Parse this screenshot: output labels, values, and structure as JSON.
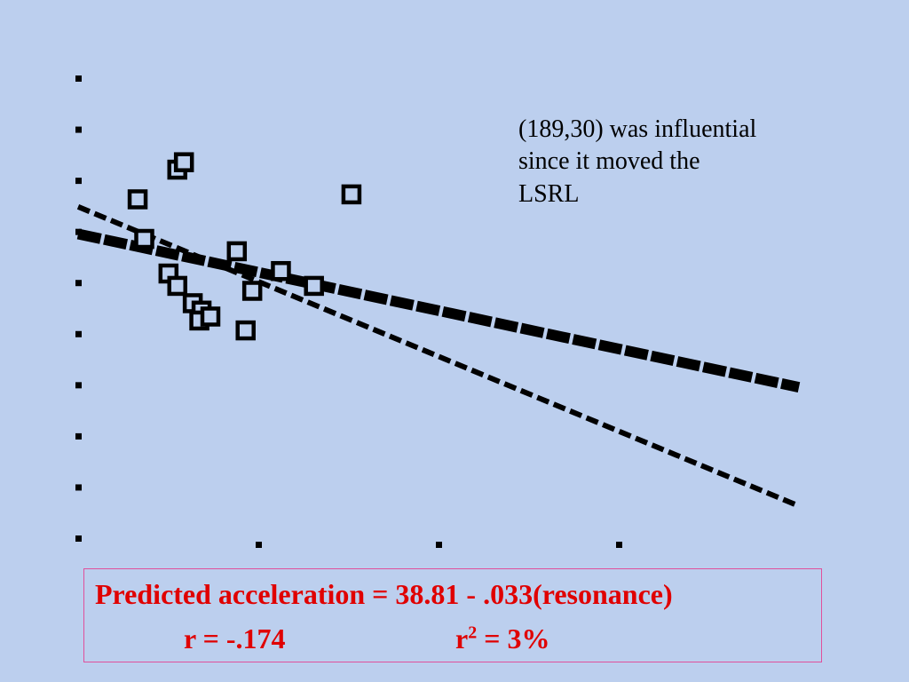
{
  "annotation": {
    "line1": "(189,30) was influential",
    "line2": "since it moved the",
    "line3": "LSRL"
  },
  "equation": {
    "text": "Predicted acceleration = 38.81 - .033(resonance)",
    "r": "r = -.174",
    "r2_prefix": "r",
    "r2_exp": "2",
    "r2_suffix": " = 3%"
  },
  "colors": {
    "background": "#bccfee",
    "ink": "#000000",
    "equation_text": "#e00000",
    "equation_border": "#e0509c"
  },
  "chart_data": {
    "type": "scatter",
    "x_ticks": 4,
    "y_ticks": 10,
    "xlim": [
      0,
      3.27
    ],
    "ylim": [
      0,
      9.3
    ],
    "points": [
      {
        "x": 0.27,
        "y": 6.85
      },
      {
        "x": 0.3,
        "y": 6.05
      },
      {
        "x": 0.41,
        "y": 5.35
      },
      {
        "x": 0.45,
        "y": 5.1
      },
      {
        "x": 0.52,
        "y": 4.75
      },
      {
        "x": 0.56,
        "y": 4.6
      },
      {
        "x": 0.55,
        "y": 4.4
      },
      {
        "x": 0.6,
        "y": 4.48
      },
      {
        "x": 0.72,
        "y": 5.8
      },
      {
        "x": 0.76,
        "y": 4.2
      },
      {
        "x": 0.79,
        "y": 5.0
      },
      {
        "x": 0.92,
        "y": 5.4
      },
      {
        "x": 1.07,
        "y": 5.1
      },
      {
        "x": 1.24,
        "y": 6.95
      },
      {
        "x": 0.45,
        "y": 7.45
      },
      {
        "x": 0.48,
        "y": 7.6
      }
    ],
    "lines": [
      {
        "x": [
          0,
          3.27
        ],
        "y": [
          6.15,
          3.05
        ]
      },
      {
        "x": [
          0,
          3.27
        ],
        "y": [
          6.7,
          0.65
        ]
      }
    ]
  }
}
